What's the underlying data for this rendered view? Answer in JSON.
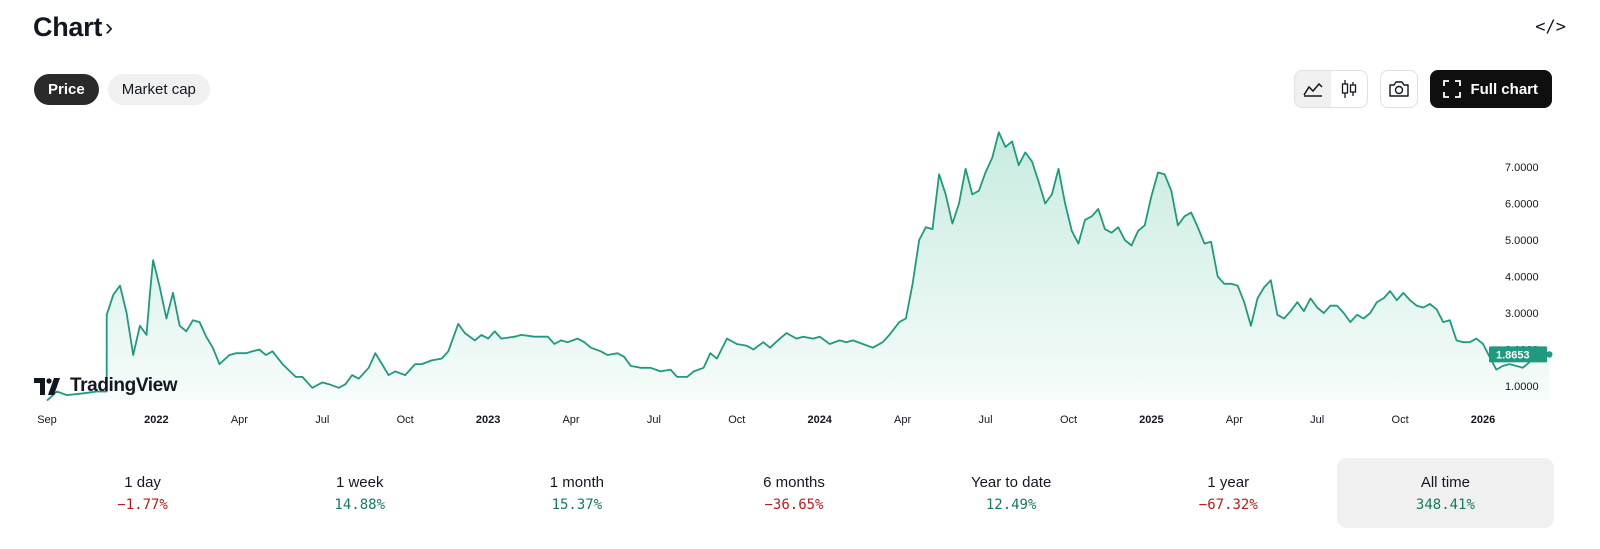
{
  "header": {
    "title": "Chart",
    "title_chevron": "›",
    "embed_label": "</>"
  },
  "tabs": [
    {
      "label": "Price",
      "active": true
    },
    {
      "label": "Market cap",
      "active": false
    }
  ],
  "toolbar": {
    "chart_types": [
      {
        "icon": "area-chart-icon",
        "selected": true
      },
      {
        "icon": "candlestick-icon",
        "selected": false
      }
    ],
    "snapshot_icon": "camera-icon",
    "full_chart_label": "Full chart",
    "full_chart_icon": "expand-icon"
  },
  "logo": {
    "text": "TradingView"
  },
  "chart_data": {
    "type": "area",
    "line_color": "#1f9a7e",
    "fill_color": "#c8ebe0",
    "last_value_label": "1.8653",
    "ylim": [
      0.6,
      7.9
    ],
    "y_ticks": [
      "1.0000",
      "2.0000",
      "3.0000",
      "4.0000",
      "5.0000",
      "6.0000",
      "7.0000"
    ],
    "x_ticks": [
      {
        "label": "Sep",
        "bold": false,
        "t": 2021.67
      },
      {
        "label": "2022",
        "bold": true,
        "t": 2022.0
      },
      {
        "label": "Apr",
        "bold": false,
        "t": 2022.25
      },
      {
        "label": "Jul",
        "bold": false,
        "t": 2022.5
      },
      {
        "label": "Oct",
        "bold": false,
        "t": 2022.75
      },
      {
        "label": "2023",
        "bold": true,
        "t": 2023.0
      },
      {
        "label": "Apr",
        "bold": false,
        "t": 2023.25
      },
      {
        "label": "Jul",
        "bold": false,
        "t": 2023.5
      },
      {
        "label": "Oct",
        "bold": false,
        "t": 2023.75
      },
      {
        "label": "2024",
        "bold": true,
        "t": 2024.0
      },
      {
        "label": "Apr",
        "bold": false,
        "t": 2024.25
      },
      {
        "label": "Jul",
        "bold": false,
        "t": 2024.5
      },
      {
        "label": "Oct",
        "bold": false,
        "t": 2024.75
      },
      {
        "label": "2025",
        "bold": true,
        "t": 2025.0
      },
      {
        "label": "Apr",
        "bold": false,
        "t": 2025.25
      },
      {
        "label": "Jul",
        "bold": false,
        "t": 2025.5
      },
      {
        "label": "Oct",
        "bold": false,
        "t": 2025.75
      },
      {
        "label": "2026",
        "bold": true,
        "t": 2026.0
      }
    ],
    "series": [
      {
        "points": [
          [
            2021.67,
            0.6
          ],
          [
            2021.7,
            0.85
          ],
          [
            2021.73,
            0.75
          ],
          [
            2021.78,
            0.8
          ],
          [
            2021.82,
            0.85
          ],
          [
            2021.85,
            0.85
          ],
          [
            2021.85,
            0.9
          ],
          [
            2021.85,
            2.95
          ],
          [
            2021.87,
            3.5
          ],
          [
            2021.89,
            3.75
          ],
          [
            2021.91,
            3.0
          ],
          [
            2021.93,
            1.85
          ],
          [
            2021.95,
            2.65
          ],
          [
            2021.97,
            2.4
          ],
          [
            2021.98,
            3.5
          ],
          [
            2021.99,
            4.45
          ],
          [
            2022.01,
            3.7
          ],
          [
            2022.03,
            2.85
          ],
          [
            2022.05,
            3.55
          ],
          [
            2022.07,
            2.65
          ],
          [
            2022.09,
            2.5
          ],
          [
            2022.11,
            2.8
          ],
          [
            2022.13,
            2.75
          ],
          [
            2022.15,
            2.35
          ],
          [
            2022.17,
            2.05
          ],
          [
            2022.19,
            1.6
          ],
          [
            2022.22,
            1.85
          ],
          [
            2022.24,
            1.9
          ],
          [
            2022.27,
            1.9
          ],
          [
            2022.29,
            1.95
          ],
          [
            2022.31,
            2.0
          ],
          [
            2022.33,
            1.85
          ],
          [
            2022.35,
            1.95
          ],
          [
            2022.38,
            1.6
          ],
          [
            2022.42,
            1.25
          ],
          [
            2022.44,
            1.25
          ],
          [
            2022.47,
            0.95
          ],
          [
            2022.5,
            1.1
          ],
          [
            2022.52,
            1.05
          ],
          [
            2022.55,
            0.95
          ],
          [
            2022.57,
            1.05
          ],
          [
            2022.59,
            1.3
          ],
          [
            2022.61,
            1.2
          ],
          [
            2022.64,
            1.5
          ],
          [
            2022.66,
            1.9
          ],
          [
            2022.68,
            1.6
          ],
          [
            2022.7,
            1.3
          ],
          [
            2022.72,
            1.4
          ],
          [
            2022.75,
            1.3
          ],
          [
            2022.78,
            1.6
          ],
          [
            2022.8,
            1.6
          ],
          [
            2022.83,
            1.7
          ],
          [
            2022.86,
            1.75
          ],
          [
            2022.88,
            1.95
          ],
          [
            2022.91,
            2.7
          ],
          [
            2022.93,
            2.45
          ],
          [
            2022.96,
            2.25
          ],
          [
            2022.98,
            2.4
          ],
          [
            2023.0,
            2.3
          ],
          [
            2023.02,
            2.5
          ],
          [
            2023.04,
            2.3
          ],
          [
            2023.08,
            2.35
          ],
          [
            2023.1,
            2.4
          ],
          [
            2023.14,
            2.35
          ],
          [
            2023.18,
            2.35
          ],
          [
            2023.2,
            2.15
          ],
          [
            2023.22,
            2.25
          ],
          [
            2023.24,
            2.2
          ],
          [
            2023.27,
            2.3
          ],
          [
            2023.29,
            2.2
          ],
          [
            2023.31,
            2.05
          ],
          [
            2023.34,
            1.95
          ],
          [
            2023.36,
            1.85
          ],
          [
            2023.39,
            1.9
          ],
          [
            2023.41,
            1.8
          ],
          [
            2023.43,
            1.55
          ],
          [
            2023.46,
            1.5
          ],
          [
            2023.49,
            1.5
          ],
          [
            2023.52,
            1.4
          ],
          [
            2023.55,
            1.45
          ],
          [
            2023.57,
            1.25
          ],
          [
            2023.6,
            1.25
          ],
          [
            2023.62,
            1.4
          ],
          [
            2023.65,
            1.5
          ],
          [
            2023.67,
            1.9
          ],
          [
            2023.69,
            1.75
          ],
          [
            2023.72,
            2.3
          ],
          [
            2023.75,
            2.15
          ],
          [
            2023.78,
            2.1
          ],
          [
            2023.8,
            2.0
          ],
          [
            2023.83,
            2.2
          ],
          [
            2023.85,
            2.05
          ],
          [
            2023.88,
            2.3
          ],
          [
            2023.9,
            2.45
          ],
          [
            2023.93,
            2.3
          ],
          [
            2023.95,
            2.35
          ],
          [
            2023.98,
            2.3
          ],
          [
            2024.0,
            2.35
          ],
          [
            2024.03,
            2.15
          ],
          [
            2024.06,
            2.25
          ],
          [
            2024.08,
            2.2
          ],
          [
            2024.1,
            2.25
          ],
          [
            2024.13,
            2.15
          ],
          [
            2024.16,
            2.05
          ],
          [
            2024.19,
            2.2
          ],
          [
            2024.21,
            2.4
          ],
          [
            2024.24,
            2.75
          ],
          [
            2024.26,
            2.85
          ],
          [
            2024.28,
            3.8
          ],
          [
            2024.3,
            5.0
          ],
          [
            2024.32,
            5.35
          ],
          [
            2024.34,
            5.3
          ],
          [
            2024.36,
            6.8
          ],
          [
            2024.38,
            6.25
          ],
          [
            2024.4,
            5.45
          ],
          [
            2024.42,
            6.0
          ],
          [
            2024.44,
            6.95
          ],
          [
            2024.46,
            6.25
          ],
          [
            2024.48,
            6.35
          ],
          [
            2024.5,
            6.85
          ],
          [
            2024.52,
            7.25
          ],
          [
            2024.54,
            7.95
          ],
          [
            2024.56,
            7.55
          ],
          [
            2024.58,
            7.7
          ],
          [
            2024.6,
            7.05
          ],
          [
            2024.62,
            7.4
          ],
          [
            2024.64,
            7.15
          ],
          [
            2024.66,
            6.6
          ],
          [
            2024.68,
            6.0
          ],
          [
            2024.7,
            6.25
          ],
          [
            2024.72,
            6.95
          ],
          [
            2024.74,
            6.0
          ],
          [
            2024.76,
            5.25
          ],
          [
            2024.78,
            4.9
          ],
          [
            2024.8,
            5.55
          ],
          [
            2024.82,
            5.65
          ],
          [
            2024.84,
            5.85
          ],
          [
            2024.86,
            5.3
          ],
          [
            2024.88,
            5.2
          ],
          [
            2024.9,
            5.35
          ],
          [
            2024.92,
            5.0
          ],
          [
            2024.94,
            4.85
          ],
          [
            2024.96,
            5.25
          ],
          [
            2024.98,
            5.4
          ],
          [
            2025.0,
            6.2
          ],
          [
            2025.02,
            6.85
          ],
          [
            2025.04,
            6.8
          ],
          [
            2025.06,
            6.35
          ],
          [
            2025.08,
            5.4
          ],
          [
            2025.1,
            5.65
          ],
          [
            2025.12,
            5.75
          ],
          [
            2025.14,
            5.35
          ],
          [
            2025.16,
            4.9
          ],
          [
            2025.18,
            4.95
          ],
          [
            2025.2,
            4.0
          ],
          [
            2025.22,
            3.8
          ],
          [
            2025.24,
            3.8
          ],
          [
            2025.26,
            3.75
          ],
          [
            2025.28,
            3.3
          ],
          [
            2025.3,
            2.65
          ],
          [
            2025.32,
            3.4
          ],
          [
            2025.34,
            3.7
          ],
          [
            2025.36,
            3.9
          ],
          [
            2025.38,
            2.95
          ],
          [
            2025.4,
            2.85
          ],
          [
            2025.42,
            3.05
          ],
          [
            2025.44,
            3.3
          ],
          [
            2025.46,
            3.05
          ],
          [
            2025.48,
            3.4
          ],
          [
            2025.5,
            3.15
          ],
          [
            2025.52,
            3.0
          ],
          [
            2025.54,
            3.2
          ],
          [
            2025.56,
            3.2
          ],
          [
            2025.58,
            3.0
          ],
          [
            2025.6,
            2.75
          ],
          [
            2025.62,
            2.95
          ],
          [
            2025.64,
            2.85
          ],
          [
            2025.66,
            3.0
          ],
          [
            2025.68,
            3.3
          ],
          [
            2025.7,
            3.4
          ],
          [
            2025.72,
            3.6
          ],
          [
            2025.74,
            3.35
          ],
          [
            2025.76,
            3.55
          ],
          [
            2025.78,
            3.35
          ],
          [
            2025.8,
            3.2
          ],
          [
            2025.82,
            3.15
          ],
          [
            2025.84,
            3.25
          ],
          [
            2025.86,
            3.1
          ],
          [
            2025.88,
            2.75
          ],
          [
            2025.9,
            2.8
          ],
          [
            2025.92,
            2.25
          ],
          [
            2025.94,
            2.2
          ],
          [
            2025.96,
            2.2
          ],
          [
            2025.98,
            2.3
          ],
          [
            2026.0,
            2.15
          ],
          [
            2026.02,
            1.8
          ],
          [
            2026.04,
            1.45
          ],
          [
            2026.06,
            1.55
          ],
          [
            2026.08,
            1.6
          ],
          [
            2026.1,
            1.55
          ],
          [
            2026.12,
            1.5
          ],
          [
            2026.14,
            1.65
          ],
          [
            2026.16,
            1.85
          ],
          [
            2026.18,
            1.8
          ],
          [
            2026.2,
            1.865
          ]
        ]
      }
    ]
  },
  "performance": [
    {
      "label": "1 day",
      "value": "−1.77%",
      "trend": "neg",
      "selected": false
    },
    {
      "label": "1 week",
      "value": "14.88%",
      "trend": "pos",
      "selected": false
    },
    {
      "label": "1 month",
      "value": "15.37%",
      "trend": "pos",
      "selected": false
    },
    {
      "label": "6 months",
      "value": "−36.65%",
      "trend": "neg",
      "selected": false
    },
    {
      "label": "Year to date",
      "value": "12.49%",
      "trend": "pos",
      "selected": false
    },
    {
      "label": "1 year",
      "value": "−67.32%",
      "trend": "neg",
      "selected": false
    },
    {
      "label": "All time",
      "value": "348.41%",
      "trend": "pos",
      "selected": true
    }
  ]
}
